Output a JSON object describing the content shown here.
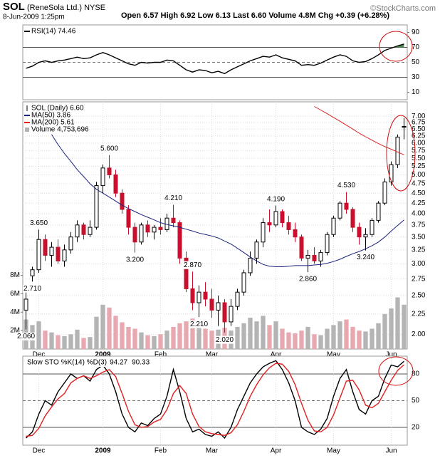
{
  "header": {
    "symbol": "SOL",
    "name": "(ReneSola Ltd.) NYSE",
    "date": "8-Jun-2009 1:25pm",
    "quote": "Open 6.57  High 6.92  Low 6.13  Last 6.60  Volume 4.8M  Chg +0.39 (+6.28%)",
    "credit": "©StockCharts.com"
  },
  "chart_data": [
    {
      "type": "line",
      "series": [
        {
          "name": "RSI(14) 74.46",
          "color": "#000000",
          "values": [
            42,
            45,
            50,
            52,
            50,
            52,
            53,
            55,
            57,
            55,
            56,
            60,
            63,
            60,
            56,
            52,
            48,
            46,
            50,
            49,
            50,
            50,
            53,
            52,
            46,
            40,
            37,
            40,
            39,
            36,
            38,
            35,
            40,
            44,
            48,
            52,
            55,
            58,
            57,
            60,
            56,
            54,
            52,
            46,
            47,
            46,
            49,
            53,
            57,
            60,
            58,
            52,
            50,
            51,
            55,
            60,
            66,
            69,
            72,
            74.46
          ]
        }
      ],
      "ylim": [
        0,
        100
      ],
      "yticks": [
        10,
        30,
        50,
        70,
        90
      ],
      "overbought": 70,
      "oversold": 30,
      "fill_color": "#4c8c4c"
    },
    {
      "type": "candlestick",
      "log_scale": true,
      "grid": true,
      "categories": [
        null,
        null,
        "Dec",
        null,
        null,
        null,
        null,
        null,
        null,
        null,
        null,
        null,
        "2009",
        null,
        null,
        null,
        null,
        null,
        null,
        null,
        null,
        "Feb",
        null,
        null,
        null,
        null,
        null,
        null,
        null,
        "Mar",
        null,
        null,
        null,
        null,
        null,
        null,
        null,
        null,
        null,
        "Apr",
        null,
        null,
        null,
        null,
        null,
        null,
        null,
        null,
        "May",
        null,
        null,
        null,
        null,
        null,
        null,
        null,
        null,
        "Jun",
        null,
        null
      ],
      "ohlc": {
        "name": "SOL (Daily) 6.60",
        "up_color": "#000000",
        "down_color": "#c8102e",
        "open": [
          2.3,
          2.8,
          2.9,
          3.45,
          3.15,
          3.3,
          3.05,
          3.25,
          3.5,
          3.75,
          3.55,
          3.7,
          4.7,
          5.2,
          5.0,
          4.5,
          4.1,
          3.7,
          3.4,
          3.75,
          3.6,
          3.7,
          3.65,
          3.9,
          3.8,
          3.1,
          2.6,
          2.4,
          2.55,
          2.45,
          2.3,
          2.4,
          2.15,
          2.35,
          2.55,
          2.85,
          3.1,
          3.4,
          3.8,
          3.75,
          4.05,
          3.8,
          3.65,
          3.5,
          3.1,
          3.15,
          3.05,
          3.2,
          3.55,
          3.9,
          4.25,
          4.1,
          3.7,
          3.5,
          3.55,
          3.85,
          4.25,
          4.8,
          5.3,
          6.57
        ],
        "high": [
          2.55,
          2.95,
          3.65,
          3.55,
          3.4,
          3.45,
          3.35,
          3.6,
          3.85,
          3.8,
          3.85,
          4.8,
          5.3,
          5.6,
          5.15,
          4.6,
          4.2,
          3.8,
          3.8,
          3.85,
          3.75,
          3.9,
          4.0,
          4.21,
          3.85,
          3.22,
          2.87,
          2.65,
          2.7,
          2.6,
          2.5,
          2.45,
          2.45,
          2.6,
          2.9,
          3.22,
          3.45,
          3.9,
          4.1,
          4.19,
          4.1,
          3.95,
          3.8,
          3.55,
          3.25,
          3.3,
          3.25,
          3.6,
          3.95,
          4.3,
          4.53,
          4.15,
          3.8,
          3.68,
          3.9,
          4.3,
          4.9,
          5.4,
          6.3,
          6.92
        ],
        "low": [
          2.06,
          2.71,
          2.85,
          3.05,
          2.95,
          3.0,
          2.95,
          3.18,
          3.4,
          3.45,
          3.5,
          3.65,
          4.5,
          4.9,
          4.4,
          4.0,
          3.55,
          3.2,
          3.35,
          3.5,
          3.45,
          3.55,
          3.6,
          3.7,
          3.0,
          2.55,
          2.3,
          2.21,
          2.35,
          2.2,
          2.1,
          2.02,
          2.1,
          2.3,
          2.5,
          2.8,
          3.0,
          3.3,
          3.6,
          3.7,
          3.7,
          3.55,
          3.4,
          3.05,
          2.86,
          3.0,
          2.95,
          3.15,
          3.5,
          3.85,
          4.0,
          3.6,
          3.35,
          3.24,
          3.5,
          3.8,
          4.2,
          4.7,
          5.2,
          6.13
        ],
        "close": [
          2.45,
          2.9,
          3.45,
          3.15,
          3.3,
          3.05,
          3.25,
          3.5,
          3.75,
          3.55,
          3.7,
          4.7,
          5.2,
          5.0,
          4.5,
          4.1,
          3.7,
          3.4,
          3.75,
          3.6,
          3.7,
          3.65,
          3.9,
          3.8,
          3.1,
          2.6,
          2.4,
          2.55,
          2.45,
          2.3,
          2.4,
          2.15,
          2.35,
          2.55,
          2.85,
          3.1,
          3.4,
          3.8,
          3.75,
          4.05,
          3.8,
          3.65,
          3.5,
          3.1,
          3.15,
          3.05,
          3.2,
          3.55,
          3.9,
          4.25,
          4.1,
          3.7,
          3.5,
          3.55,
          3.85,
          4.25,
          4.8,
          5.3,
          6.21,
          6.6
        ]
      },
      "series": [
        {
          "name": "MA(50) 3.86",
          "color": "#1a237e",
          "values": [
            null,
            null,
            null,
            null,
            6.3,
            5.95,
            5.65,
            5.4,
            5.15,
            4.95,
            4.75,
            4.6,
            4.5,
            4.4,
            4.3,
            4.2,
            4.12,
            4.05,
            3.98,
            3.92,
            3.86,
            3.8,
            3.76,
            3.73,
            3.7,
            3.66,
            3.62,
            3.58,
            3.55,
            3.52,
            3.48,
            3.42,
            3.36,
            3.28,
            3.2,
            3.12,
            3.05,
            2.99,
            2.96,
            2.95,
            2.95,
            2.96,
            2.97,
            2.97,
            2.97,
            2.98,
            2.99,
            3.01,
            3.04,
            3.08,
            3.13,
            3.18,
            3.22,
            3.27,
            3.33,
            3.4,
            3.5,
            3.62,
            3.74,
            3.86
          ]
        },
        {
          "name": "MA(200) 5.61",
          "color": "#e02020",
          "values": [
            null,
            null,
            null,
            null,
            null,
            null,
            null,
            null,
            null,
            null,
            null,
            null,
            null,
            null,
            null,
            null,
            null,
            null,
            null,
            null,
            null,
            null,
            null,
            null,
            null,
            null,
            null,
            null,
            null,
            null,
            null,
            null,
            null,
            null,
            null,
            null,
            null,
            null,
            null,
            null,
            null,
            null,
            null,
            null,
            null,
            7.4,
            7.25,
            7.1,
            6.95,
            6.8,
            6.65,
            6.5,
            6.35,
            6.22,
            6.1,
            5.98,
            5.88,
            5.79,
            5.7,
            5.61
          ]
        },
        {
          "name": "Volume 4,753,696",
          "axis": "y2",
          "color": "#b4b4b4",
          "down_color": "#e8a8b0",
          "values": [
            3.2,
            2.6,
            3.0,
            2.0,
            1.8,
            1.5,
            1.4,
            1.6,
            2.1,
            1.2,
            1.3,
            3.5,
            4.8,
            4.5,
            3.6,
            2.9,
            2.4,
            2.2,
            1.8,
            1.5,
            1.4,
            1.6,
            2.0,
            2.4,
            2.8,
            3.0,
            3.3,
            2.9,
            2.2,
            2.0,
            2.1,
            2.3,
            2.0,
            2.4,
            2.8,
            3.4,
            3.0,
            3.6,
            2.6,
            3.0,
            2.2,
            1.8,
            1.7,
            2.0,
            2.4,
            1.6,
            1.5,
            2.2,
            2.6,
            3.0,
            3.2,
            2.4,
            2.0,
            1.9,
            2.2,
            2.8,
            3.8,
            4.4,
            5.6,
            4.8
          ]
        }
      ],
      "ylim": [
        1.84,
        7.6
      ],
      "yticks": [
        {
          "value": 2,
          "label": "2.00"
        },
        {
          "value": 2.25,
          "label": "2.25"
        },
        {
          "value": 2.5,
          "label": "2.50"
        },
        {
          "value": 2.75,
          "label": "2.75"
        },
        {
          "value": 3,
          "label": "3.00"
        },
        {
          "value": 3.25,
          "label": "3.25"
        },
        {
          "value": 3.5,
          "label": "3.50"
        },
        {
          "value": 3.75,
          "label": "3.75"
        },
        {
          "value": 4,
          "label": "4.00"
        },
        {
          "value": 4.25,
          "label": "4.25"
        },
        {
          "value": 4.5,
          "label": "4.50"
        },
        {
          "value": 4.75,
          "label": "4.75"
        },
        {
          "value": 5,
          "label": "5.00"
        },
        {
          "value": 5.25,
          "label": "5.25"
        },
        {
          "value": 5.5,
          "label": "5.50"
        },
        {
          "value": 5.75,
          "label": "5.75"
        },
        {
          "value": 6,
          "label": "6.00"
        },
        {
          "value": 6.25,
          "label": "6.25"
        },
        {
          "value": 6.5,
          "label": "6.50"
        },
        {
          "value": 6.75,
          "label": "6.75"
        },
        {
          "value": 7,
          "label": "7.00"
        }
      ],
      "y2lim": [
        0,
        26.8
      ],
      "y2ticks": [
        {
          "value": 2,
          "label": "2M"
        },
        {
          "value": 4,
          "label": "4M"
        },
        {
          "value": 6,
          "label": "6M"
        },
        {
          "value": 8,
          "label": "8M"
        }
      ],
      "price_labels": [
        {
          "value": 2.06,
          "label": "2.060"
        },
        {
          "value": 2.71,
          "label": "2.710"
        },
        {
          "value": 3.65,
          "label": "3.650"
        },
        {
          "value": 5.6,
          "label": "5.600"
        },
        {
          "value": 3.2,
          "label": "3.200"
        },
        {
          "value": 4.21,
          "label": "4.210"
        },
        {
          "value": 2.87,
          "label": "2.870"
        },
        {
          "value": 2.21,
          "label": "2.210"
        },
        {
          "value": 2.02,
          "label": "2.020"
        },
        {
          "value": 4.19,
          "label": "4.190"
        },
        {
          "value": 2.86,
          "label": "2.860"
        },
        {
          "value": 4.53,
          "label": "4.530"
        },
        {
          "value": 3.24,
          "label": "3.240"
        }
      ]
    },
    {
      "type": "line",
      "title": "Slow STO %K(14) %D(3)",
      "categories": [
        null,
        null,
        "Dec",
        null,
        null,
        null,
        null,
        null,
        null,
        null,
        null,
        null,
        "2009",
        null,
        null,
        null,
        null,
        null,
        null,
        null,
        null,
        "Feb",
        null,
        null,
        null,
        null,
        null,
        null,
        null,
        "Mar",
        null,
        null,
        null,
        null,
        null,
        null,
        null,
        null,
        null,
        "Apr",
        null,
        null,
        null,
        null,
        null,
        null,
        null,
        null,
        "May",
        null,
        null,
        null,
        null,
        null,
        null,
        null,
        null,
        "Jun",
        null,
        null
      ],
      "series": [
        {
          "name": "94.27",
          "color": "#000000",
          "values": [
            8,
            15,
            35,
            50,
            45,
            60,
            70,
            80,
            75,
            78,
            72,
            85,
            90,
            80,
            60,
            35,
            20,
            15,
            25,
            22,
            30,
            35,
            55,
            85,
            60,
            30,
            15,
            18,
            12,
            10,
            15,
            8,
            20,
            40,
            55,
            70,
            80,
            88,
            92,
            95,
            85,
            70,
            50,
            20,
            15,
            12,
            18,
            30,
            55,
            75,
            85,
            60,
            40,
            35,
            50,
            55,
            75,
            90,
            88,
            94.27
          ]
        },
        {
          "name": "90.33",
          "color": "#e02020",
          "values": [
            10,
            11,
            19,
            33,
            43,
            52,
            58,
            70,
            75,
            78,
            75,
            78,
            82,
            85,
            77,
            58,
            38,
            23,
            20,
            21,
            26,
            29,
            40,
            58,
            67,
            58,
            35,
            21,
            15,
            13,
            12,
            11,
            14,
            23,
            38,
            55,
            68,
            79,
            87,
            92,
            91,
            83,
            68,
            47,
            28,
            16,
            15,
            20,
            34,
            53,
            72,
            73,
            62,
            45,
            42,
            47,
            60,
            73,
            84,
            90.33
          ]
        }
      ],
      "ylim": [
        0,
        100
      ],
      "yticks": [
        20,
        50,
        80
      ],
      "overbought": 80,
      "oversold": 20
    }
  ]
}
